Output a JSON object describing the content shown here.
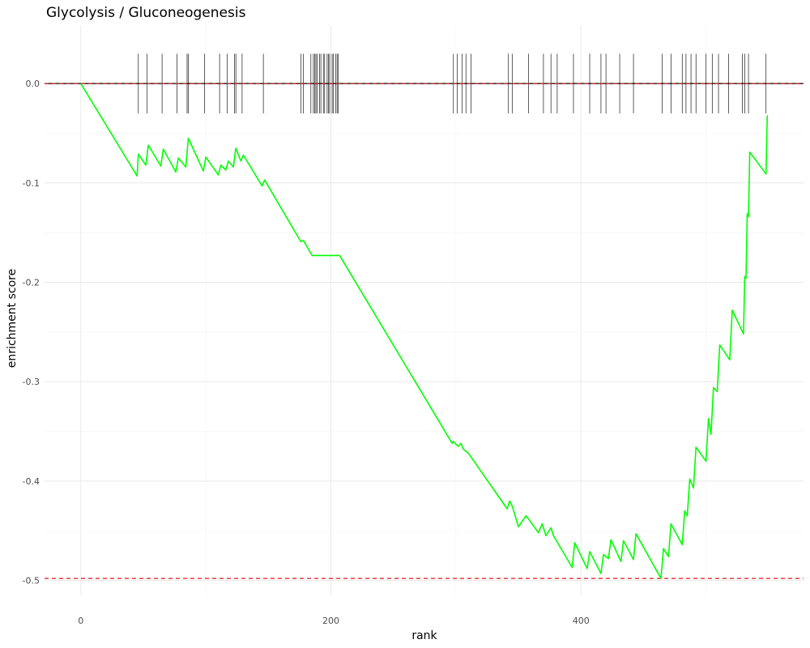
{
  "chart_data": {
    "type": "line",
    "title": "Glycolysis / Gluconeogenesis",
    "xlabel": "rank",
    "ylabel": "enrichment score",
    "xlim": [
      -29,
      578
    ],
    "ylim": [
      -0.515,
      0.058
    ],
    "x_ticks": [
      0,
      200,
      400
    ],
    "x_tick_labels": [
      "0",
      "200",
      "400"
    ],
    "y_ticks": [
      0.0,
      -0.1,
      -0.2,
      -0.3,
      -0.4,
      -0.5
    ],
    "y_tick_labels": [
      "0.0",
      "-0.1",
      "-0.2",
      "-0.3",
      "-0.4",
      "-0.5"
    ],
    "grid": true,
    "baseline": 0.0,
    "min_es": -0.498,
    "colors": {
      "curve": "#00ff00",
      "dashed": "#e8141a",
      "baseline": "#000000",
      "hits": "#1a1a1a",
      "grid": "#ebebeb"
    },
    "series": [
      {
        "x": [
          0,
          45,
          46,
          52,
          54,
          64,
          66,
          76,
          78,
          84,
          86,
          98,
          100,
          110,
          112,
          116,
          118,
          122,
          124,
          128,
          130,
          145,
          147,
          175,
          176,
          178,
          179,
          185,
          207,
          297,
          298,
          300,
          302,
          304,
          306,
          308,
          310,
          341,
          343,
          345,
          350,
          356,
          358,
          366,
          369,
          372,
          376,
          378,
          393,
          395,
          405,
          407,
          416,
          418,
          422,
          424,
          432,
          434,
          442,
          444,
          464,
          466,
          470,
          472,
          481,
          483,
          485,
          487,
          490,
          492,
          500,
          502,
          504,
          506,
          509,
          511,
          519,
          521,
          530,
          531,
          532,
          533,
          534,
          535,
          548,
          549
        ],
        "y": [
          0.0,
          -0.093,
          -0.071,
          -0.082,
          -0.062,
          -0.083,
          -0.066,
          -0.089,
          -0.075,
          -0.084,
          -0.055,
          -0.088,
          -0.074,
          -0.092,
          -0.082,
          -0.087,
          -0.078,
          -0.084,
          -0.065,
          -0.078,
          -0.072,
          -0.103,
          -0.097,
          -0.157,
          -0.159,
          -0.158,
          -0.16,
          -0.173,
          -0.173,
          -0.362,
          -0.36,
          -0.363,
          -0.365,
          -0.362,
          -0.368,
          -0.37,
          -0.372,
          -0.428,
          -0.42,
          -0.425,
          -0.446,
          -0.435,
          -0.438,
          -0.452,
          -0.443,
          -0.455,
          -0.447,
          -0.455,
          -0.487,
          -0.462,
          -0.488,
          -0.471,
          -0.493,
          -0.474,
          -0.478,
          -0.459,
          -0.481,
          -0.46,
          -0.479,
          -0.453,
          -0.498,
          -0.468,
          -0.476,
          -0.443,
          -0.464,
          -0.43,
          -0.435,
          -0.398,
          -0.407,
          -0.366,
          -0.38,
          -0.337,
          -0.353,
          -0.306,
          -0.31,
          -0.263,
          -0.278,
          -0.228,
          -0.252,
          -0.194,
          -0.196,
          -0.131,
          -0.134,
          -0.069,
          -0.091,
          -0.032
        ]
      }
    ],
    "hits": [
      46,
      53,
      65,
      77,
      85,
      86,
      99,
      111,
      117,
      123,
      124,
      129,
      146,
      176,
      178,
      184,
      186,
      187,
      188,
      189,
      191,
      192,
      194,
      195,
      197,
      198,
      199,
      201,
      202,
      204,
      205,
      206,
      298,
      301,
      305,
      308,
      312,
      342,
      345,
      358,
      370,
      376,
      381,
      394,
      407,
      416,
      420,
      431,
      442,
      465,
      472,
      481,
      484,
      488,
      492,
      500,
      505,
      510,
      518,
      529,
      531,
      534,
      548
    ]
  }
}
